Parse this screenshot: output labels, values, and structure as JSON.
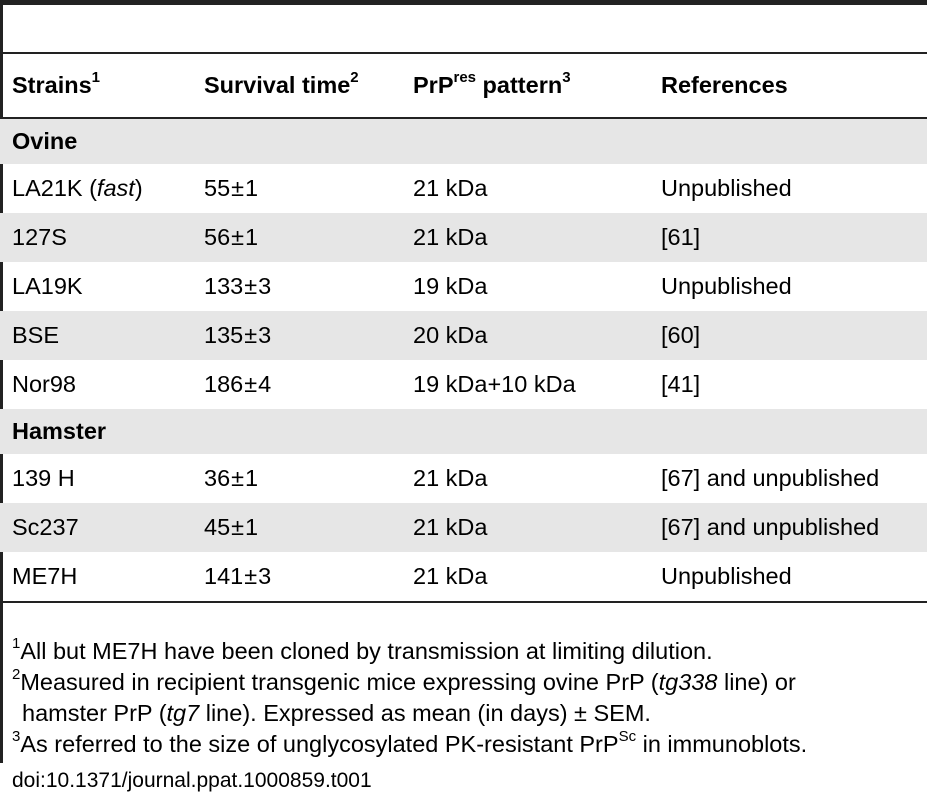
{
  "table": {
    "headers": {
      "strains": "Strains",
      "strains_sup": "1",
      "survival": "Survival time",
      "survival_sup": "2",
      "pattern_pre": "PrP",
      "pattern_sup_res": "res",
      "pattern_post": " pattern",
      "pattern_sup": "3",
      "references": "References"
    },
    "groups": [
      {
        "label": "Ovine",
        "rows": [
          {
            "strain": "LA21K (",
            "strain_italic": "fast",
            "strain_close": ")",
            "survival_mean": "55",
            "survival_sem": "1",
            "pattern": "21 kDa",
            "reference": "Unpublished"
          },
          {
            "strain": "127S",
            "strain_italic": "",
            "strain_close": "",
            "survival_mean": "56",
            "survival_sem": "1",
            "pattern": "21 kDa",
            "reference": "[61]"
          },
          {
            "strain": "LA19K",
            "strain_italic": "",
            "strain_close": "",
            "survival_mean": "133",
            "survival_sem": "3",
            "pattern": "19 kDa",
            "reference": "Unpublished"
          },
          {
            "strain": "BSE",
            "strain_italic": "",
            "strain_close": "",
            "survival_mean": "135",
            "survival_sem": "3",
            "pattern": "20 kDa",
            "reference": "[60]"
          },
          {
            "strain": "Nor98",
            "strain_italic": "",
            "strain_close": "",
            "survival_mean": "186",
            "survival_sem": "4",
            "pattern": "19 kDa+10 kDa",
            "reference": "[41]"
          }
        ]
      },
      {
        "label": "Hamster",
        "rows": [
          {
            "strain": "139 H",
            "strain_italic": "",
            "strain_close": "",
            "survival_mean": "36",
            "survival_sem": "1",
            "pattern": "21 kDa",
            "reference": "[67] and unpublished"
          },
          {
            "strain": "Sc237",
            "strain_italic": "",
            "strain_close": "",
            "survival_mean": "45",
            "survival_sem": "1",
            "pattern": "21 kDa",
            "reference": "[67] and unpublished"
          },
          {
            "strain": "ME7H",
            "strain_italic": "",
            "strain_close": "",
            "survival_mean": "141",
            "survival_sem": "3",
            "pattern": "21 kDa",
            "reference": "Unpublished"
          }
        ]
      }
    ],
    "pm_symbol": "±"
  },
  "footnotes": {
    "n1_mark": "1",
    "n1_text": "All but ME7H have been cloned by transmission at limiting dilution.",
    "n2_mark": "2",
    "n2_a": "Measured in recipient transgenic mice expressing ovine PrP (",
    "n2_b_italic": "tg338",
    "n2_c": " line) or",
    "n2_d": "hamster PrP (",
    "n2_e_italic": "tg7",
    "n2_f": " line). Expressed as mean (in days) ± SEM.",
    "n3_mark": "3",
    "n3_a": "As referred to the size of unglycosylated PK-resistant PrP",
    "n3_sup": "Sc",
    "n3_b": " in immunoblots.",
    "doi": "doi:10.1371/journal.ppat.1000859.t001"
  }
}
